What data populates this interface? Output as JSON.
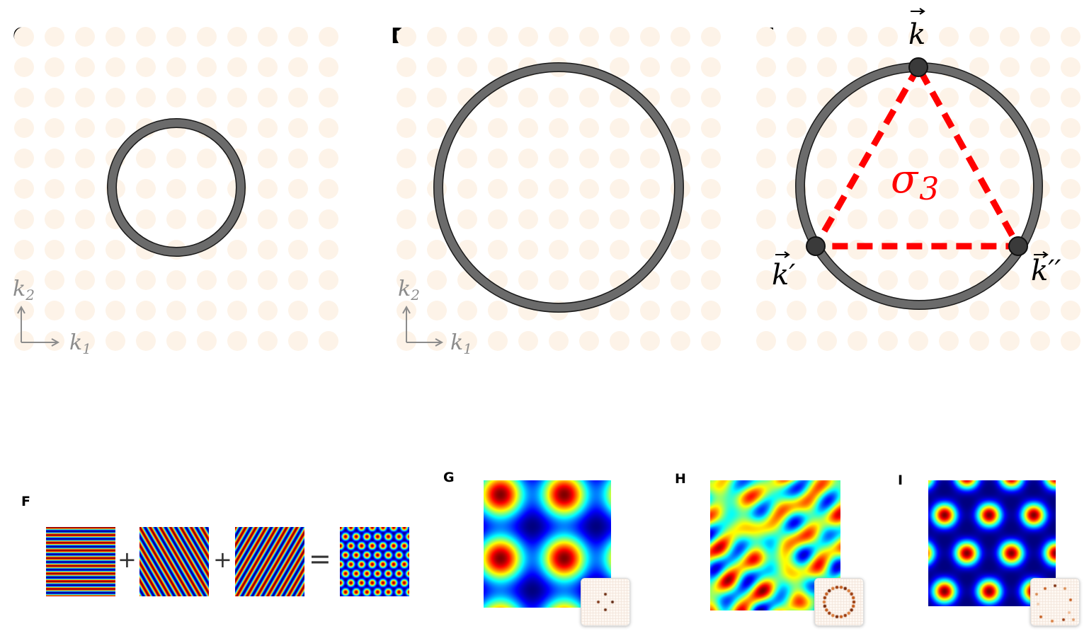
{
  "panels": {
    "C": {
      "label": "C",
      "axis_y": "k",
      "axis_y_sub": "2",
      "axis_x": "k",
      "axis_x_sub": "1"
    },
    "D": {
      "label": "D",
      "axis_y": "k",
      "axis_y_sub": "2",
      "axis_x": "k",
      "axis_x_sub": "1"
    },
    "E": {
      "label": "E",
      "vec_top": "k",
      "vec_left": "k′",
      "vec_right": "k′′",
      "triangle_label": "σ",
      "triangle_sub": "3"
    },
    "F": {
      "label": "F",
      "plus": "+",
      "equals": "="
    },
    "G": {
      "label": "G"
    },
    "H": {
      "label": "H"
    },
    "I": {
      "label": "I"
    }
  },
  "colors": {
    "lattice_dot": "#fdf3e8",
    "ring": "#6b6b6b",
    "ring_edge": "#1a1a1a",
    "triangle": "#ff0000",
    "axis": "#8c8c8c"
  }
}
